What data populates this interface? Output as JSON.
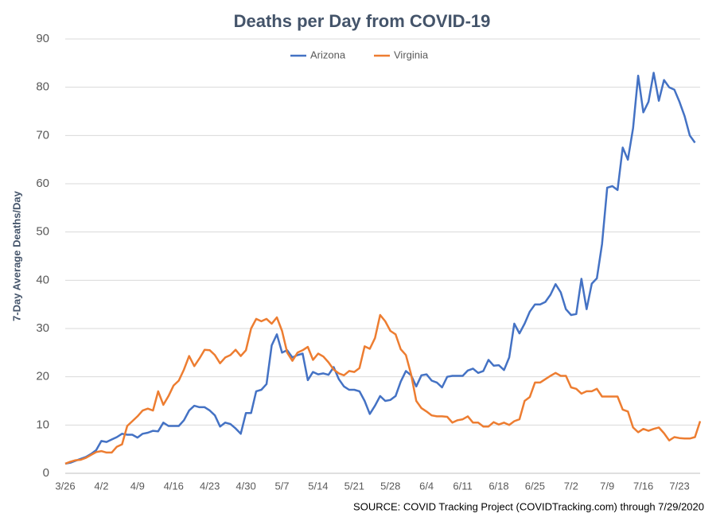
{
  "chart_data": {
    "type": "line",
    "title": "Deaths per Day from COVID-19",
    "y_label": "7-Day Average Deaths/Day",
    "source": "SOURCE: COVID Tracking Project (COVIDTracking.com) through 7/29/2020",
    "categories": [
      "3/26",
      null,
      null,
      null,
      null,
      null,
      null,
      "4/2",
      null,
      null,
      null,
      null,
      null,
      null,
      "4/9",
      null,
      null,
      null,
      null,
      null,
      null,
      "4/16",
      null,
      null,
      null,
      null,
      null,
      null,
      "4/23",
      null,
      null,
      null,
      null,
      null,
      null,
      "4/30",
      null,
      null,
      null,
      null,
      null,
      null,
      "5/7",
      null,
      null,
      null,
      null,
      null,
      null,
      "5/14",
      null,
      null,
      null,
      null,
      null,
      null,
      "5/21",
      null,
      null,
      null,
      null,
      null,
      null,
      "5/28",
      null,
      null,
      null,
      null,
      null,
      null,
      "6/4",
      null,
      null,
      null,
      null,
      null,
      null,
      "6/11",
      null,
      null,
      null,
      null,
      null,
      null,
      "6/18",
      null,
      null,
      null,
      null,
      null,
      null,
      "6/25",
      null,
      null,
      null,
      null,
      null,
      null,
      "7/2",
      null,
      null,
      null,
      null,
      null,
      null,
      "7/9",
      null,
      null,
      null,
      null,
      null,
      null,
      "7/16",
      null,
      null,
      null,
      null,
      null,
      null,
      "7/23",
      null,
      null,
      null,
      null
    ],
    "series": [
      {
        "name": "Arizona",
        "color": "#4472c4",
        "values": [
          2,
          2.2,
          2.6,
          3,
          3.4,
          4,
          4.8,
          6.7,
          6.5,
          7,
          7.5,
          8.2,
          8,
          8,
          7.4,
          8.2,
          8.4,
          8.8,
          8.7,
          10.5,
          9.8,
          9.8,
          9.8,
          11,
          13,
          14,
          13.7,
          13.7,
          13,
          12,
          9.7,
          10.5,
          10.2,
          9.3,
          8.2,
          12.5,
          12.5,
          17,
          17.3,
          18.5,
          26.5,
          28.8,
          25,
          25.5,
          24,
          24.5,
          24.8,
          19.3,
          21,
          20.5,
          20.7,
          20.4,
          22,
          19.5,
          18,
          17.3,
          17.3,
          17,
          15,
          12.3,
          14,
          16,
          15,
          15.2,
          16,
          19,
          21.2,
          20.3,
          18,
          20.3,
          20.5,
          19.2,
          18.8,
          17.8,
          20,
          20.2,
          20.2,
          20.2,
          21.3,
          21.7,
          20.8,
          21.2,
          23.5,
          22.3,
          22.4,
          21.4,
          24,
          31,
          29,
          31,
          33.5,
          35,
          35,
          35.5,
          37,
          39.2,
          37.5,
          34,
          32.8,
          33,
          40.3,
          34,
          39.3,
          40.4,
          47.5,
          59.2,
          59.5,
          58.7,
          67.5,
          65,
          71.5,
          82.4,
          74.8,
          77,
          83,
          77.2,
          81.5,
          80,
          79.5,
          77,
          74,
          70,
          68.5,
          null
        ]
      },
      {
        "name": "Virginia",
        "color": "#ed7d31",
        "values": [
          2,
          2.4,
          2.7,
          2.8,
          3.2,
          3.8,
          4.4,
          4.6,
          4.3,
          4.3,
          5.5,
          6,
          9.8,
          10.8,
          11.8,
          13,
          13.4,
          13,
          17,
          14.2,
          16,
          18.2,
          19.2,
          21.5,
          24.3,
          22.2,
          23.8,
          25.6,
          25.5,
          24.5,
          22.8,
          24,
          24.5,
          25.6,
          24.3,
          25.5,
          30,
          32,
          31.5,
          32,
          31,
          32.3,
          29.5,
          25,
          23.3,
          25,
          25.5,
          26.2,
          23.5,
          24.8,
          24.2,
          23,
          21.5,
          20.7,
          20.3,
          21.2,
          21,
          21.8,
          26.3,
          25.8,
          28,
          32.8,
          31.5,
          29.5,
          28.8,
          25.7,
          24.5,
          20.5,
          15,
          13.5,
          12.8,
          12,
          11.8,
          11.8,
          11.7,
          10.5,
          11,
          11.2,
          11.8,
          10.5,
          10.5,
          9.7,
          9.7,
          10.6,
          10.1,
          10.5,
          10,
          10.8,
          11.2,
          15,
          15.8,
          18.8,
          18.8,
          19.5,
          20.2,
          20.8,
          20.2,
          20.2,
          17.8,
          17.5,
          16.5,
          17,
          17,
          17.5,
          15.9,
          15.9,
          15.9,
          15.9,
          13.2,
          12.8,
          9.5,
          8.5,
          9.2,
          8.8,
          9.2,
          9.5,
          8.3,
          6.8,
          7.5,
          7.3,
          7.2,
          7.2,
          7.5,
          10.8
        ]
      }
    ],
    "ylim": [
      0,
      90
    ],
    "yticks": [
      0,
      10,
      20,
      30,
      40,
      50,
      60,
      70,
      80,
      90
    ],
    "grid": true,
    "legend": "top"
  }
}
